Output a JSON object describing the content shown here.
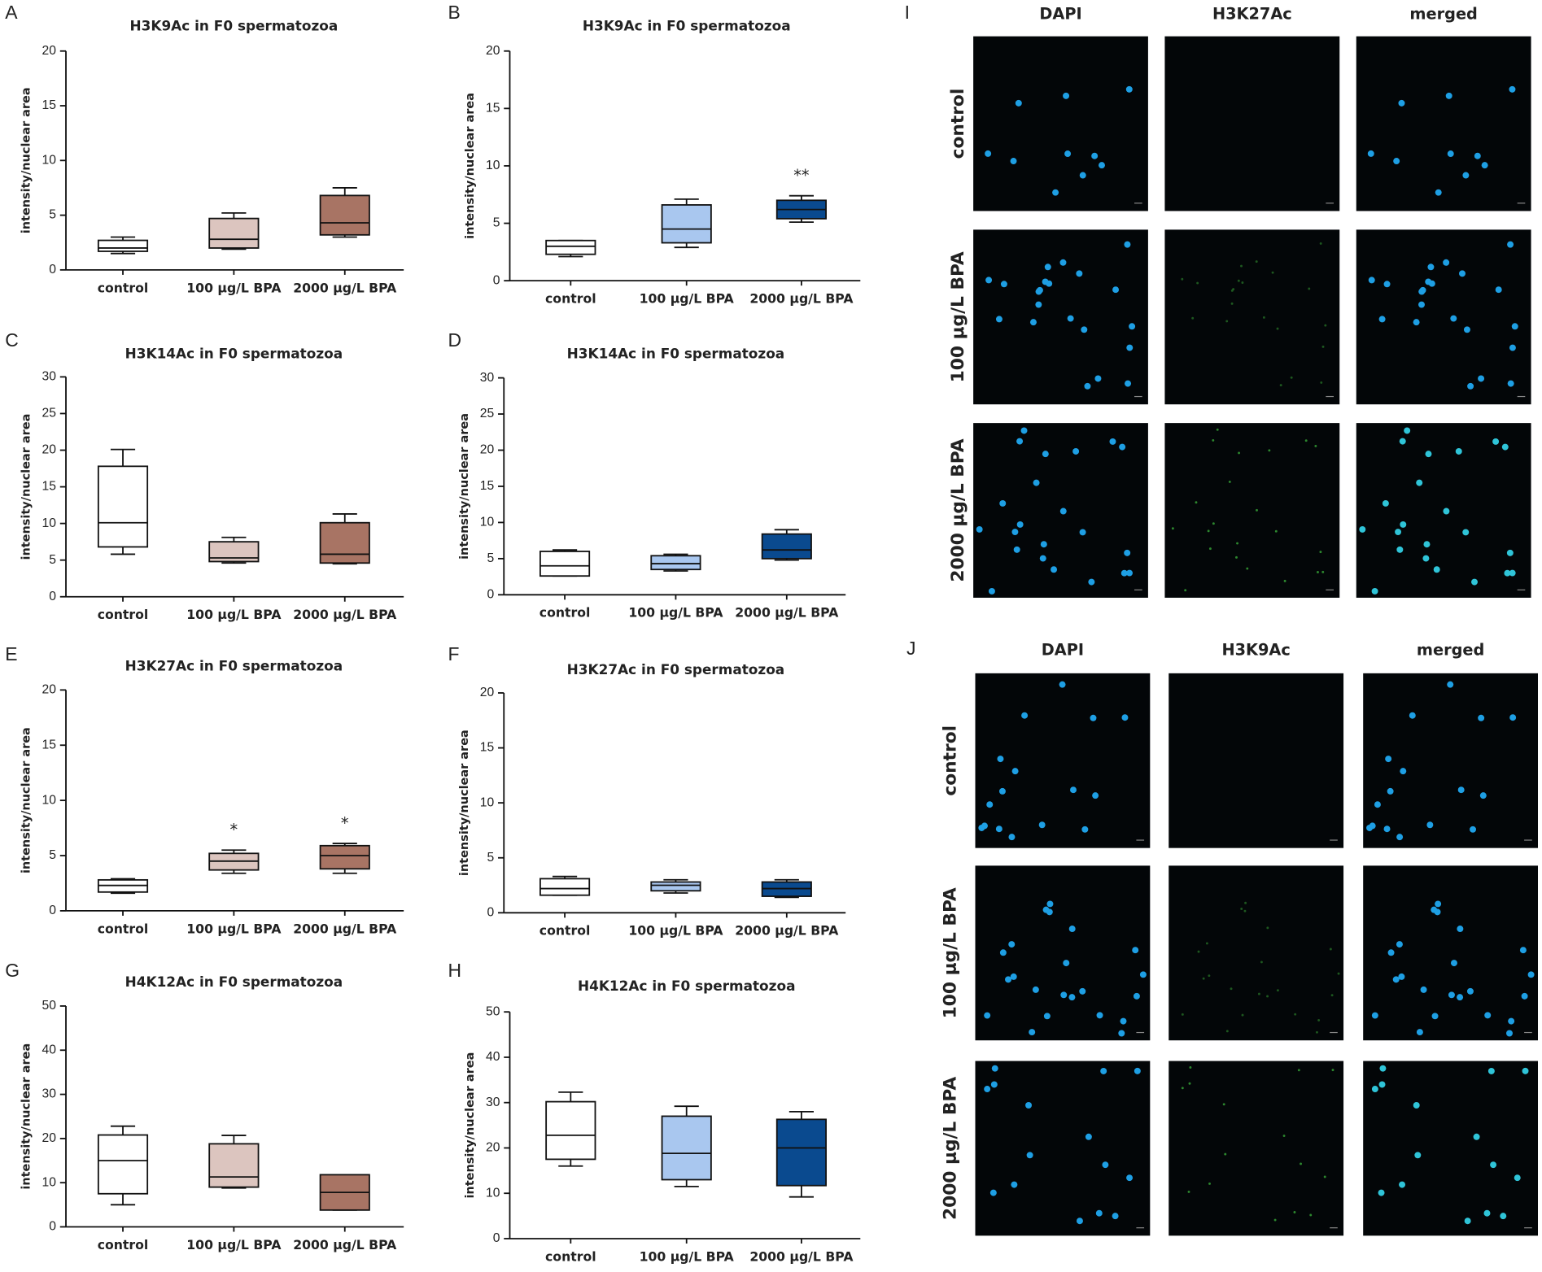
{
  "chart_data": [
    {
      "type": "box",
      "panel": "A",
      "title": "H3K9Ac in F0 spermatozoa",
      "ylabel": "intensity/nuclear area",
      "categories": [
        "control",
        "100 μg/L BPA",
        "2000 μg/L BPA"
      ],
      "colors": [
        "#ffffff",
        "#dcc5bf",
        "#a87464"
      ],
      "boxes": [
        {
          "min": 1.5,
          "q1": 1.7,
          "median": 2.0,
          "q3": 2.7,
          "max": 3.0
        },
        {
          "min": 1.9,
          "q1": 2.0,
          "median": 2.8,
          "q3": 4.7,
          "max": 5.2
        },
        {
          "min": 3.0,
          "q1": 3.2,
          "median": 4.3,
          "q3": 6.8,
          "max": 7.5
        }
      ],
      "annotations": [
        null,
        null,
        null
      ],
      "ylim": [
        0,
        20
      ],
      "yticks": [
        0,
        5,
        10,
        15,
        20
      ]
    },
    {
      "type": "box",
      "panel": "B",
      "title": "H3K9Ac in F0 spermatozoa",
      "ylabel": "intensity/nuclear area",
      "categories": [
        "control",
        "100 μg/L BPA",
        "2000 μg/L BPA"
      ],
      "colors": [
        "#ffffff",
        "#a9c7ef",
        "#0a4a8f"
      ],
      "boxes": [
        {
          "min": 2.1,
          "q1": 2.3,
          "median": 3.0,
          "q3": 3.5,
          "max": 3.5
        },
        {
          "min": 2.9,
          "q1": 3.3,
          "median": 4.5,
          "q3": 6.6,
          "max": 7.1
        },
        {
          "min": 5.1,
          "q1": 5.4,
          "median": 6.2,
          "q3": 7.0,
          "max": 7.4
        }
      ],
      "annotations": [
        null,
        null,
        "**"
      ],
      "ylim": [
        0,
        20
      ],
      "yticks": [
        0,
        5,
        10,
        15,
        20
      ]
    },
    {
      "type": "box",
      "panel": "C",
      "title": "H3K14Ac in F0 spermatozoa",
      "ylabel": "intensity/nuclear area",
      "categories": [
        "control",
        "100 μg/L BPA",
        "2000 μg/L BPA"
      ],
      "colors": [
        "#ffffff",
        "#dcc5bf",
        "#a87464"
      ],
      "boxes": [
        {
          "min": 5.8,
          "q1": 6.8,
          "median": 10.1,
          "q3": 17.8,
          "max": 20.1
        },
        {
          "min": 4.6,
          "q1": 4.8,
          "median": 5.3,
          "q3": 7.5,
          "max": 8.1
        },
        {
          "min": 4.5,
          "q1": 4.6,
          "median": 5.8,
          "q3": 10.1,
          "max": 11.3
        }
      ],
      "annotations": [
        null,
        null,
        null
      ],
      "ylim": [
        0,
        30
      ],
      "yticks": [
        0,
        5,
        10,
        15,
        20,
        25,
        30
      ]
    },
    {
      "type": "box",
      "panel": "D",
      "title": "H3K14Ac in F0 spermatozoa",
      "ylabel": "intensity/nuclear area",
      "categories": [
        "control",
        "100 μg/L BPA",
        "2000 μg/L BPA"
      ],
      "colors": [
        "#ffffff",
        "#a9c7ef",
        "#0a4a8f"
      ],
      "boxes": [
        {
          "min": 2.6,
          "q1": 2.6,
          "median": 4.0,
          "q3": 6.0,
          "max": 6.2
        },
        {
          "min": 3.3,
          "q1": 3.5,
          "median": 4.3,
          "q3": 5.4,
          "max": 5.6
        },
        {
          "min": 4.8,
          "q1": 5.0,
          "median": 6.2,
          "q3": 8.4,
          "max": 9.0
        }
      ],
      "annotations": [
        null,
        null,
        null
      ],
      "ylim": [
        0,
        30
      ],
      "yticks": [
        0,
        5,
        10,
        15,
        20,
        25,
        30
      ]
    },
    {
      "type": "box",
      "panel": "E",
      "title": "H3K27Ac in F0 spermatozoa",
      "ylabel": "intensity/nuclear area",
      "categories": [
        "control",
        "100 μg/L BPA",
        "2000 μg/L BPA"
      ],
      "colors": [
        "#ffffff",
        "#dcc5bf",
        "#a87464"
      ],
      "boxes": [
        {
          "min": 1.6,
          "q1": 1.7,
          "median": 2.3,
          "q3": 2.8,
          "max": 2.9
        },
        {
          "min": 3.4,
          "q1": 3.7,
          "median": 4.5,
          "q3": 5.2,
          "max": 5.5
        },
        {
          "min": 3.4,
          "q1": 3.8,
          "median": 5.0,
          "q3": 5.9,
          "max": 6.1
        }
      ],
      "annotations": [
        null,
        "*",
        "*"
      ],
      "ylim": [
        0,
        20
      ],
      "yticks": [
        0,
        5,
        10,
        15,
        20
      ]
    },
    {
      "type": "box",
      "panel": "F",
      "title": "H3K27Ac in F0 spermatozoa",
      "ylabel": "intensity/nuclear area",
      "categories": [
        "control",
        "100 μg/L BPA",
        "2000 μg/L BPA"
      ],
      "colors": [
        "#ffffff",
        "#a9c7ef",
        "#0a4a8f"
      ],
      "boxes": [
        {
          "min": 1.6,
          "q1": 1.6,
          "median": 2.2,
          "q3": 3.1,
          "max": 3.3
        },
        {
          "min": 1.8,
          "q1": 2.0,
          "median": 2.5,
          "q3": 2.8,
          "max": 3.0
        },
        {
          "min": 1.4,
          "q1": 1.5,
          "median": 2.2,
          "q3": 2.8,
          "max": 3.0
        }
      ],
      "annotations": [
        null,
        null,
        null
      ],
      "ylim": [
        0,
        20
      ],
      "yticks": [
        0,
        5,
        10,
        15,
        20
      ]
    },
    {
      "type": "box",
      "panel": "G",
      "title": "H4K12Ac in F0 spermatozoa",
      "ylabel": "intensity/nuclear area",
      "categories": [
        "control",
        "100 μg/L BPA",
        "2000 μg/L BPA"
      ],
      "colors": [
        "#ffffff",
        "#dcc5bf",
        "#a87464"
      ],
      "boxes": [
        {
          "min": 5.0,
          "q1": 7.5,
          "median": 15.0,
          "q3": 20.8,
          "max": 22.8
        },
        {
          "min": 8.8,
          "q1": 9.0,
          "median": 11.3,
          "q3": 18.8,
          "max": 20.7
        },
        {
          "min": 3.8,
          "q1": 3.8,
          "median": 7.8,
          "q3": 11.8,
          "max": 11.8
        }
      ],
      "annotations": [
        null,
        null,
        null
      ],
      "ylim": [
        0,
        50
      ],
      "yticks": [
        0,
        10,
        20,
        30,
        40,
        50
      ]
    },
    {
      "type": "box",
      "panel": "H",
      "title": "H4K12Ac in F0 spermatozoa",
      "ylabel": "intensity/nuclear area",
      "categories": [
        "control",
        "100 μg/L BPA",
        "2000 μg/L BPA"
      ],
      "colors": [
        "#ffffff",
        "#a9c7ef",
        "#0a4a8f"
      ],
      "boxes": [
        {
          "min": 16.0,
          "q1": 17.5,
          "median": 22.8,
          "q3": 30.2,
          "max": 32.3
        },
        {
          "min": 11.5,
          "q1": 13.0,
          "median": 18.8,
          "q3": 27.0,
          "max": 29.2
        },
        {
          "min": 9.2,
          "q1": 11.7,
          "median": 20.0,
          "q3": 26.3,
          "max": 28.0
        }
      ],
      "annotations": [
        null,
        null,
        null
      ],
      "ylim": [
        0,
        50
      ],
      "yticks": [
        0,
        10,
        20,
        30,
        40,
        50
      ]
    }
  ],
  "micrographs": [
    {
      "panel": "I",
      "columns": [
        "DAPI",
        "H3K27Ac",
        "merged"
      ],
      "rows": [
        "control",
        "100 μg/L BPA",
        "2000 μg/L BPA"
      ]
    },
    {
      "panel": "J",
      "columns": [
        "DAPI",
        "H3K9Ac",
        "merged"
      ],
      "rows": [
        "control",
        "100 μg/L BPA",
        "2000 μg/L BPA"
      ]
    }
  ]
}
